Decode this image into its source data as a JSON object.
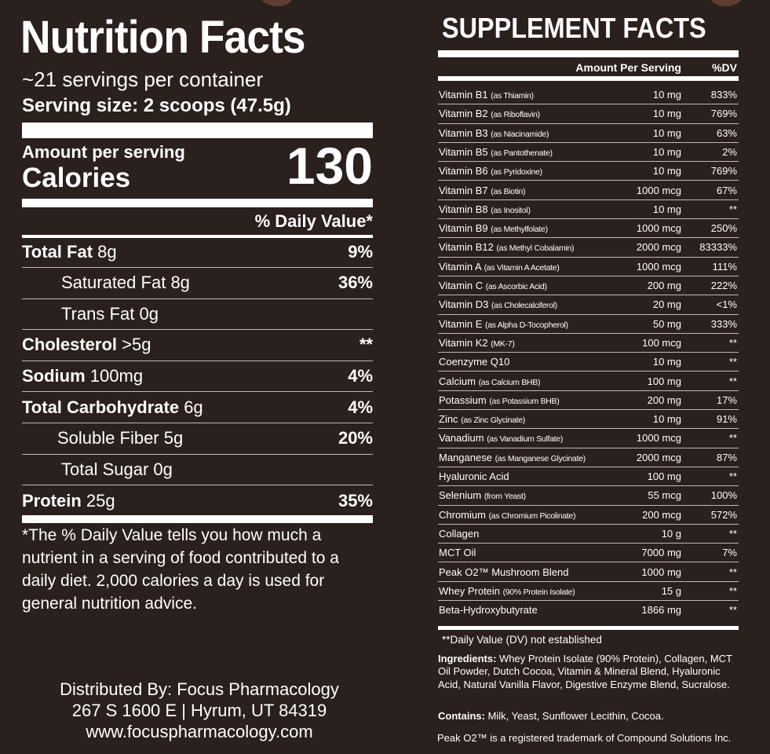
{
  "colors": {
    "background": "#2a201d",
    "text": "#ffffff",
    "accent_dot": "#5c3d30"
  },
  "nutrition": {
    "title": "Nutrition Facts",
    "servings": "~21 servings per container",
    "serving_size": "Serving size: 2 scoops (47.5g)",
    "amount_per_serving": "Amount per serving",
    "calories_label": "Calories",
    "calories_value": "130",
    "dv_header": "% Daily Value*",
    "rows": [
      {
        "name": "Total Fat",
        "amount": "8g",
        "dv": "9%",
        "bold": true,
        "indent": 0
      },
      {
        "name": "Saturated Fat",
        "amount": "8g",
        "dv": "36%",
        "bold": false,
        "indent": 50
      },
      {
        "name": "Trans Fat",
        "amount": "0g",
        "dv": "",
        "bold": false,
        "indent": 50
      },
      {
        "name": "Cholesterol",
        "amount": ">5g",
        "dv": "**",
        "bold": true,
        "indent": 0
      },
      {
        "name": "Sodium",
        "amount": "100mg",
        "dv": "4%",
        "bold": true,
        "indent": 0
      },
      {
        "name": "Total Carbohydrate",
        "amount": "6g",
        "dv": "4%",
        "bold": true,
        "indent": 0
      },
      {
        "name": "Soluble Fiber",
        "amount": "5g",
        "dv": "20%",
        "bold": false,
        "indent": 45
      },
      {
        "name": "Total Sugar",
        "amount": "0g",
        "dv": "",
        "bold": false,
        "indent": 50
      },
      {
        "name": "Protein",
        "amount": "25g",
        "dv": "35%",
        "bold": true,
        "indent": 0
      }
    ],
    "footnote": "*The % Daily Value tells you how much a nutrient in a serving of food contributed to a daily diet. 2,000 calories a day is used for general nutrition advice.",
    "distributor": [
      "Distributed By: Focus Pharmacology",
      "267 S 1600 E | Hyrum, UT 84319",
      "www.focuspharmacology.com"
    ]
  },
  "supplement": {
    "title": "SUPPLEMENT FACTS",
    "header_amount": "Amount Per Serving",
    "header_dv": "%DV",
    "rows": [
      {
        "name": "Vitamin B1",
        "note": "(as Thiamin)",
        "amount": "10 mg",
        "dv": "833%"
      },
      {
        "name": "Vitamin B2",
        "note": "(as Riboflavin)",
        "amount": "10 mg",
        "dv": "769%"
      },
      {
        "name": "Vitamin B3",
        "note": "(as Niacinamide)",
        "amount": "10 mg",
        "dv": "63%"
      },
      {
        "name": "Vitamin B5",
        "note": "(as Pantothenate)",
        "amount": "10 mg",
        "dv": "2%"
      },
      {
        "name": "Vitamin B6",
        "note": "(as Pyridoxine)",
        "amount": "10 mg",
        "dv": "769%"
      },
      {
        "name": "Vitamin B7",
        "note": "(as Biotin)",
        "amount": "1000 mcg",
        "dv": "67%"
      },
      {
        "name": "Vitamin B8",
        "note": "(as Inositol)",
        "amount": "10 mg",
        "dv": "**"
      },
      {
        "name": "Vitamin B9",
        "note": "(as Methylfolate)",
        "amount": "1000 mcg",
        "dv": "250%"
      },
      {
        "name": "Vitamin B12",
        "note": "(as Methyl Cobalamin)",
        "amount": "2000 mcg",
        "dv": "83333%"
      },
      {
        "name": "Vitamin A",
        "note": "(as Vitamin A Acetate)",
        "amount": "1000 mcg",
        "dv": "111%"
      },
      {
        "name": "Vitamin C",
        "note": "(as Ascorbic Acid)",
        "amount": "200 mg",
        "dv": "222%"
      },
      {
        "name": "Vitamin D3",
        "note": "(as Cholecalciferol)",
        "amount": "20 mg",
        "dv": "<1%"
      },
      {
        "name": "Vitamin E",
        "note": "(as Alpha D-Tocopherol)",
        "amount": "50 mg",
        "dv": "333%"
      },
      {
        "name": "Vitamin K2",
        "note": "(MK-7)",
        "amount": "100 mcg",
        "dv": "**"
      },
      {
        "name": "Coenzyme Q10",
        "note": "",
        "amount": "10 mg",
        "dv": "**"
      },
      {
        "name": "Calcium",
        "note": "(as Calcium BHB)",
        "amount": "100 mg",
        "dv": "**"
      },
      {
        "name": "Potassium",
        "note": "(as Potassium BHB)",
        "amount": "200 mg",
        "dv": "17%"
      },
      {
        "name": "Zinc",
        "note": "(as Zinc Glycinate)",
        "amount": "10 mg",
        "dv": "91%"
      },
      {
        "name": "Vanadium",
        "note": "(as Vanadium Sulfate)",
        "amount": "1000 mcg",
        "dv": "**"
      },
      {
        "name": "Manganese",
        "note": "(as Manganese Glycinate)",
        "amount": "2000 mcg",
        "dv": "87%"
      },
      {
        "name": "Hyaluronic Acid",
        "note": "",
        "amount": "100 mg",
        "dv": "**"
      },
      {
        "name": "Selenium",
        "note": "(from Yeast)",
        "amount": "55 mcg",
        "dv": "100%"
      },
      {
        "name": "Chromium",
        "note": "(as Chromium Picolinate)",
        "amount": "200 mcg",
        "dv": "572%"
      },
      {
        "name": "Collagen",
        "note": "",
        "amount": "10 g",
        "dv": "**"
      },
      {
        "name": "MCT Oil",
        "note": "",
        "amount": "7000 mg",
        "dv": "7%"
      },
      {
        "name": "Peak O2™ Mushroom Blend",
        "note": "",
        "amount": "1000 mg",
        "dv": "**"
      },
      {
        "name": "Whey Protein",
        "note": "(90% Protein Isolate)",
        "amount": "15 g",
        "dv": "**"
      },
      {
        "name": "Beta-Hydroxybutyrate",
        "note": "",
        "amount": "1866 mg",
        "dv": "**"
      }
    ],
    "dv_note": "**Daily Value (DV) not established",
    "ingredients_label": "Ingredients:",
    "ingredients": " Whey Protein Isolate (90% Protein), Collagen, MCT Oil Powder, Dutch Cocoa, Vitamin & Mineral Blend, Hyaluronic Acid, Natural Vanilla Flavor, Digestive Enzyme Blend, Sucralose.",
    "contains_label": "Contains:",
    "contains": " Milk, Yeast, Sunflower Lecithin, Cocoa.",
    "trademark": "Peak O2™ is a registered trademark of Compound Solutions Inc."
  }
}
